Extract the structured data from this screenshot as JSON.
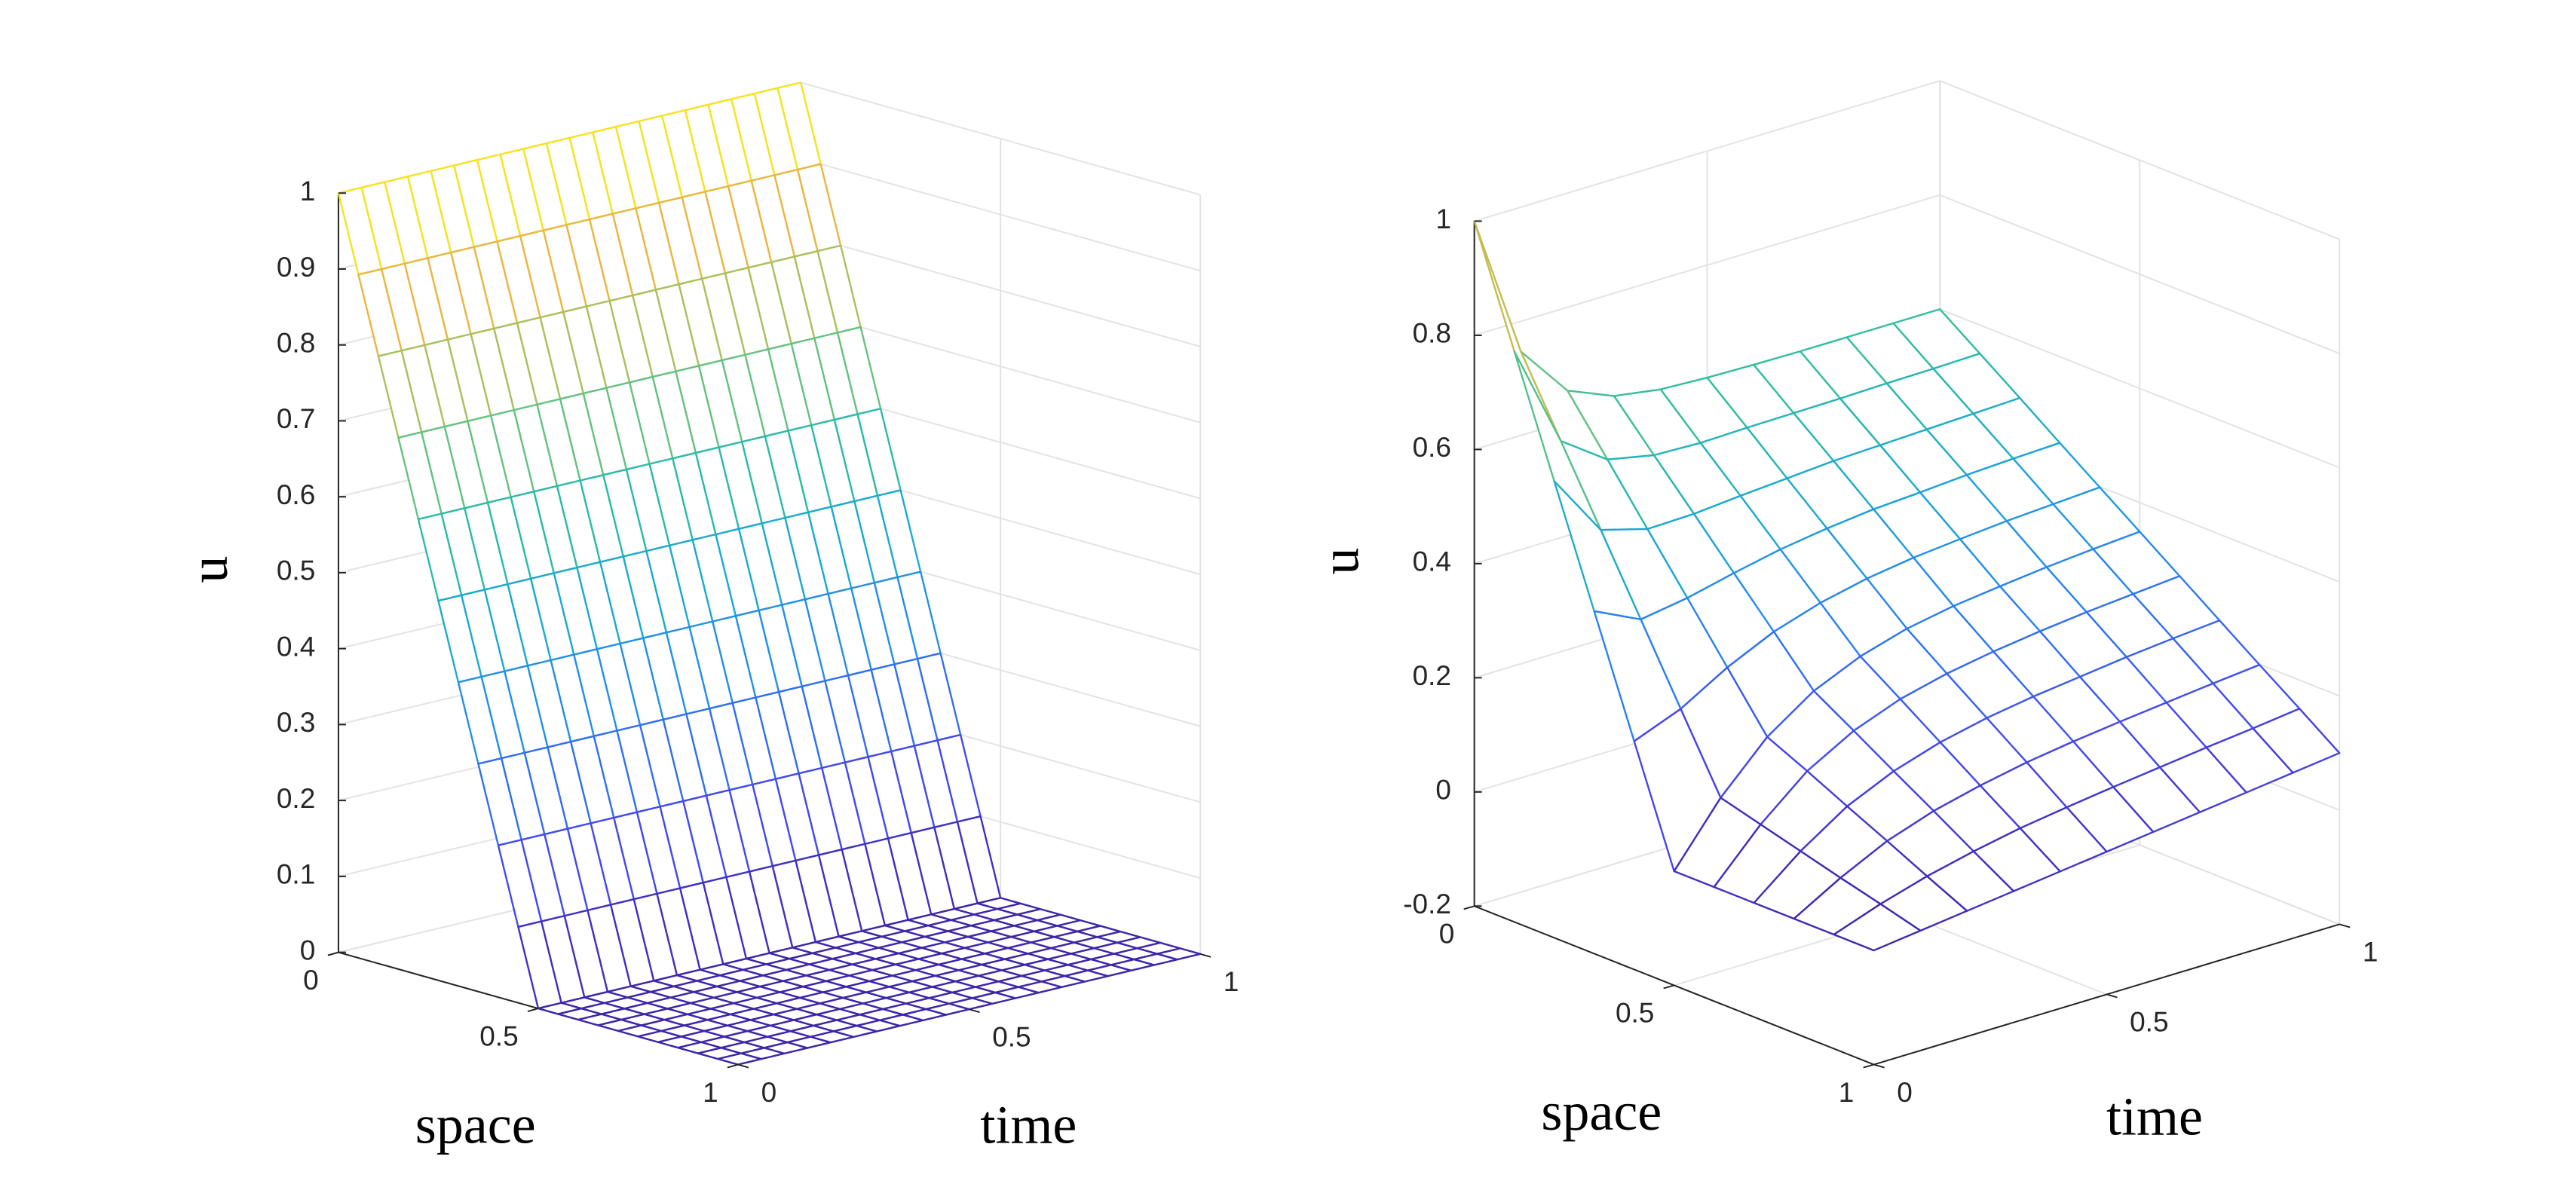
{
  "chart_data": [
    {
      "type": "surface",
      "xlabel": "space",
      "ylabel": "time",
      "zlabel": "u",
      "x": [
        0,
        0.05,
        0.1,
        0.15,
        0.2,
        0.25,
        0.3,
        0.35,
        0.4,
        0.45,
        0.5,
        0.55,
        0.6,
        0.65,
        0.7,
        0.75,
        0.8,
        0.85,
        0.9,
        0.95,
        1
      ],
      "y": [
        0,
        0.05,
        0.1,
        0.15,
        0.2,
        0.25,
        0.3,
        0.35,
        0.4,
        0.45,
        0.5,
        0.55,
        0.6,
        0.65,
        0.7,
        0.75,
        0.8,
        0.85,
        0.9,
        0.95,
        1
      ],
      "z": [
        [
          1,
          1,
          1,
          1,
          1,
          1,
          1,
          1,
          1,
          1,
          1,
          1,
          1,
          1,
          1,
          1,
          1,
          1,
          1,
          1,
          1
        ],
        [
          0.9,
          0.9,
          0.9,
          0.9,
          0.9,
          0.9,
          0.9,
          0.9,
          0.9,
          0.9,
          0.9,
          0.9,
          0.9,
          0.9,
          0.9,
          0.9,
          0.9,
          0.9,
          0.9,
          0.9,
          0.9
        ],
        [
          0.8,
          0.8,
          0.8,
          0.8,
          0.8,
          0.8,
          0.8,
          0.8,
          0.8,
          0.8,
          0.8,
          0.8,
          0.8,
          0.8,
          0.8,
          0.8,
          0.8,
          0.8,
          0.8,
          0.8,
          0.8
        ],
        [
          0.7,
          0.7,
          0.7,
          0.7,
          0.7,
          0.7,
          0.7,
          0.7,
          0.7,
          0.7,
          0.7,
          0.7,
          0.7,
          0.7,
          0.7,
          0.7,
          0.7,
          0.7,
          0.7,
          0.7,
          0.7
        ],
        [
          0.6,
          0.6,
          0.6,
          0.6,
          0.6,
          0.6,
          0.6,
          0.6,
          0.6,
          0.6,
          0.6,
          0.6,
          0.6,
          0.6,
          0.6,
          0.6,
          0.6,
          0.6,
          0.6,
          0.6,
          0.6
        ],
        [
          0.5,
          0.5,
          0.5,
          0.5,
          0.5,
          0.5,
          0.5,
          0.5,
          0.5,
          0.5,
          0.5,
          0.5,
          0.5,
          0.5,
          0.5,
          0.5,
          0.5,
          0.5,
          0.5,
          0.5,
          0.5
        ],
        [
          0.4,
          0.4,
          0.4,
          0.4,
          0.4,
          0.4,
          0.4,
          0.4,
          0.4,
          0.4,
          0.4,
          0.4,
          0.4,
          0.4,
          0.4,
          0.4,
          0.4,
          0.4,
          0.4,
          0.4,
          0.4
        ],
        [
          0.3,
          0.3,
          0.3,
          0.3,
          0.3,
          0.3,
          0.3,
          0.3,
          0.3,
          0.3,
          0.3,
          0.3,
          0.3,
          0.3,
          0.3,
          0.3,
          0.3,
          0.3,
          0.3,
          0.3,
          0.3
        ],
        [
          0.2,
          0.2,
          0.2,
          0.2,
          0.2,
          0.2,
          0.2,
          0.2,
          0.2,
          0.2,
          0.2,
          0.2,
          0.2,
          0.2,
          0.2,
          0.2,
          0.2,
          0.2,
          0.2,
          0.2,
          0.2
        ],
        [
          0.1,
          0.1,
          0.1,
          0.1,
          0.1,
          0.1,
          0.1,
          0.1,
          0.1,
          0.1,
          0.1,
          0.1,
          0.1,
          0.1,
          0.1,
          0.1,
          0.1,
          0.1,
          0.1,
          0.1,
          0.1
        ],
        [
          0,
          0,
          0,
          0,
          0,
          0,
          0,
          0,
          0,
          0,
          0,
          0,
          0,
          0,
          0,
          0,
          0,
          0,
          0,
          0,
          0
        ],
        [
          0,
          0,
          0,
          0,
          0,
          0,
          0,
          0,
          0,
          0,
          0,
          0,
          0,
          0,
          0,
          0,
          0,
          0,
          0,
          0,
          0
        ],
        [
          0,
          0,
          0,
          0,
          0,
          0,
          0,
          0,
          0,
          0,
          0,
          0,
          0,
          0,
          0,
          0,
          0,
          0,
          0,
          0,
          0
        ],
        [
          0,
          0,
          0,
          0,
          0,
          0,
          0,
          0,
          0,
          0,
          0,
          0,
          0,
          0,
          0,
          0,
          0,
          0,
          0,
          0,
          0
        ],
        [
          0,
          0,
          0,
          0,
          0,
          0,
          0,
          0,
          0,
          0,
          0,
          0,
          0,
          0,
          0,
          0,
          0,
          0,
          0,
          0,
          0
        ],
        [
          0,
          0,
          0,
          0,
          0,
          0,
          0,
          0,
          0,
          0,
          0,
          0,
          0,
          0,
          0,
          0,
          0,
          0,
          0,
          0,
          0
        ],
        [
          0,
          0,
          0,
          0,
          0,
          0,
          0,
          0,
          0,
          0,
          0,
          0,
          0,
          0,
          0,
          0,
          0,
          0,
          0,
          0,
          0
        ],
        [
          0,
          0,
          0,
          0,
          0,
          0,
          0,
          0,
          0,
          0,
          0,
          0,
          0,
          0,
          0,
          0,
          0,
          0,
          0,
          0,
          0
        ],
        [
          0,
          0,
          0,
          0,
          0,
          0,
          0,
          0,
          0,
          0,
          0,
          0,
          0,
          0,
          0,
          0,
          0,
          0,
          0,
          0,
          0
        ],
        [
          0,
          0,
          0,
          0,
          0,
          0,
          0,
          0,
          0,
          0,
          0,
          0,
          0,
          0,
          0,
          0,
          0,
          0,
          0,
          0,
          0
        ],
        [
          0,
          0,
          0,
          0,
          0,
          0,
          0,
          0,
          0,
          0,
          0,
          0,
          0,
          0,
          0,
          0,
          0,
          0,
          0,
          0,
          0
        ]
      ],
      "xlim": [
        0,
        1
      ],
      "ylim": [
        0,
        1
      ],
      "zlim": [
        0,
        1
      ],
      "xticks": [
        0,
        0.5,
        1
      ],
      "yticks": [
        0,
        0.5,
        1
      ],
      "zticks": [
        0,
        0.1,
        0.2,
        0.3,
        0.4,
        0.5,
        0.6,
        0.7,
        0.8,
        0.9,
        1
      ],
      "grid": true
    },
    {
      "type": "surface",
      "xlabel": "space",
      "ylabel": "time",
      "zlabel": "u",
      "x": [
        0,
        0.1,
        0.2,
        0.3,
        0.4,
        0.5,
        0.6,
        0.7,
        0.8,
        0.9,
        1
      ],
      "y": [
        0,
        0.1,
        0.2,
        0.3,
        0.4,
        0.5,
        0.6,
        0.7,
        0.8,
        0.9,
        1
      ],
      "z": [
        [
          1,
          0.747,
          0.654,
          0.62,
          0.607,
          0.603,
          0.601,
          0.6,
          0.6,
          0.6,
          0.6
        ],
        [
          0.8,
          0.618,
          0.561,
          0.544,
          0.541,
          0.543,
          0.544,
          0.545,
          0.547,
          0.548,
          0.55
        ],
        [
          0.6,
          0.49,
          0.467,
          0.469,
          0.476,
          0.482,
          0.488,
          0.491,
          0.494,
          0.497,
          0.5
        ],
        [
          0.4,
          0.361,
          0.374,
          0.393,
          0.41,
          0.422,
          0.431,
          0.436,
          0.442,
          0.446,
          0.449
        ],
        [
          0.2,
          0.232,
          0.28,
          0.318,
          0.344,
          0.362,
          0.374,
          0.382,
          0.389,
          0.394,
          0.399
        ],
        [
          0,
          0.104,
          0.186,
          0.242,
          0.278,
          0.302,
          0.317,
          0.327,
          0.336,
          0.343,
          0.349
        ],
        [
          0,
          0.085,
          0.154,
          0.2,
          0.231,
          0.251,
          0.265,
          0.276,
          0.285,
          0.292,
          0.299
        ],
        [
          0,
          0.066,
          0.12,
          0.157,
          0.183,
          0.201,
          0.214,
          0.224,
          0.234,
          0.242,
          0.249
        ],
        [
          0,
          0.047,
          0.087,
          0.115,
          0.135,
          0.151,
          0.163,
          0.173,
          0.182,
          0.191,
          0.199
        ],
        [
          0,
          0.029,
          0.053,
          0.072,
          0.088,
          0.1,
          0.111,
          0.121,
          0.131,
          0.14,
          0.15
        ],
        [
          0,
          0.01,
          0.02,
          0.03,
          0.04,
          0.05,
          0.06,
          0.07,
          0.08,
          0.09,
          0.1
        ]
      ],
      "xlim": [
        0,
        1
      ],
      "ylim": [
        0,
        1
      ],
      "zlim": [
        -0.2,
        1
      ],
      "xticks": [
        0,
        0.5,
        1
      ],
      "yticks": [
        0,
        0.5,
        1
      ],
      "zticks": [
        -0.2,
        0,
        0.2,
        0.4,
        0.6,
        0.8,
        1
      ],
      "grid": true
    }
  ]
}
